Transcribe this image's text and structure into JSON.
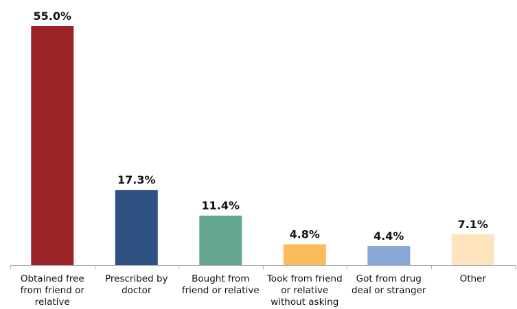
{
  "chart_data": {
    "type": "bar",
    "title": "",
    "xlabel": "",
    "ylabel": "",
    "ylim": [
      0,
      55
    ],
    "grid": false,
    "legend": "none",
    "categories": [
      "Obtained free from friend or relative",
      "Prescribed by doctor",
      "Bought from friend or relative",
      "Took from friend or relative without asking",
      "Got from drug deal or stranger",
      "Other"
    ],
    "category_lines": [
      [
        "Obtained free",
        "from friend or",
        "relative"
      ],
      [
        "Prescribed by",
        "doctor"
      ],
      [
        "Bought from",
        "friend or relative"
      ],
      [
        "Took from friend",
        "or relative",
        "without asking"
      ],
      [
        "Got from drug",
        "deal or stranger"
      ],
      [
        "Other"
      ]
    ],
    "values": [
      55.0,
      17.3,
      11.4,
      4.8,
      4.4,
      7.1
    ],
    "value_labels": [
      "55.0%",
      "17.3%",
      "11.4%",
      "4.8%",
      "4.4%",
      "7.1%"
    ],
    "colors": [
      "#9b2226",
      "#2d5183",
      "#64a68e",
      "#fcbc5d",
      "#87a7d4",
      "#fde4bf"
    ]
  }
}
